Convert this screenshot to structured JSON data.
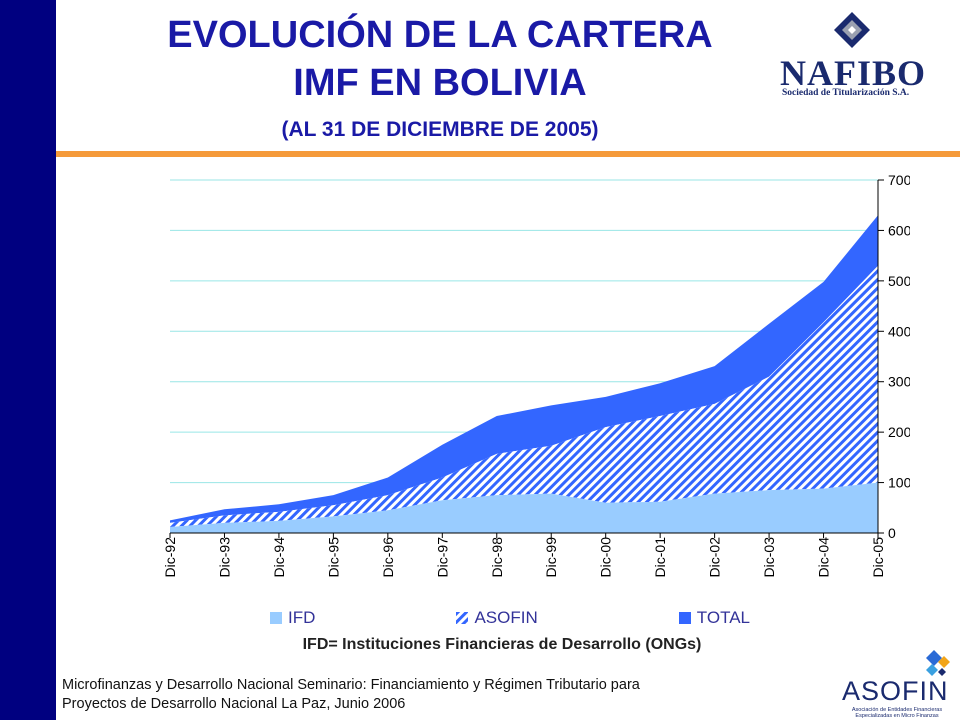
{
  "header": {
    "title_line1": "EVOLUCIÓN DE LA CARTERA",
    "title_line2": "IMF EN BOLIVIA",
    "subtitle": "(AL 31 DE DICIEMBRE DE 2005)"
  },
  "logos": {
    "nafibo_name": "NAFIBO",
    "nafibo_sub": "Sociedad de Titularización S.A.",
    "asofin_name": "ASOFIN",
    "asofin_sub": "Asociación de Entidades Financieras Especializadas en Micro Finanzas"
  },
  "note": "IFD= Instituciones Financieras de Desarrollo (ONGs)",
  "footer": {
    "line1": "Microfinanzas y Desarrollo Nacional Seminario: Financiamiento y Régimen Tributario para",
    "line2": "Proyectos de Desarrollo Nacional La Paz, Junio 2006"
  },
  "colors": {
    "ifd": "#99ccff",
    "asofin": "#3366ff",
    "total": "#3366ff",
    "grid": "#99e6e6",
    "title": "#1a1aa6",
    "left_bar": "#000080",
    "rule": "#f59a3a"
  },
  "chart_data": {
    "type": "area",
    "stacked": true,
    "x": [
      "Dic-92",
      "Dic-93",
      "Dic-94",
      "Dic-95",
      "Dic-96",
      "Dic-97",
      "Dic-98",
      "Dic-99",
      "Dic-00",
      "Dic-01",
      "Dic-02",
      "Dic-03",
      "Dic-04",
      "Dic-05"
    ],
    "series": [
      {
        "name": "IFD",
        "values": [
          12,
          20,
          24,
          33,
          45,
          65,
          75,
          78,
          60,
          62,
          78,
          85,
          88,
          100
        ]
      },
      {
        "name": "ASOFIN",
        "values": [
          8,
          15,
          18,
          22,
          30,
          45,
          82,
          95,
          150,
          170,
          178,
          225,
          330,
          430
        ]
      },
      {
        "name": "TOTAL",
        "values": [
          5,
          12,
          15,
          20,
          35,
          65,
          75,
          80,
          60,
          65,
          75,
          105,
          80,
          100
        ]
      }
    ],
    "ylim": [
      0,
      700
    ],
    "yticks": [
      "0",
      "100",
      "200",
      "300",
      "400",
      "500",
      "600",
      "700"
    ],
    "y_axis_side": "right",
    "grid": true,
    "legend": {
      "placement": "bottom",
      "entries": [
        "IFD",
        "ASOFIN",
        "TOTAL"
      ]
    }
  }
}
